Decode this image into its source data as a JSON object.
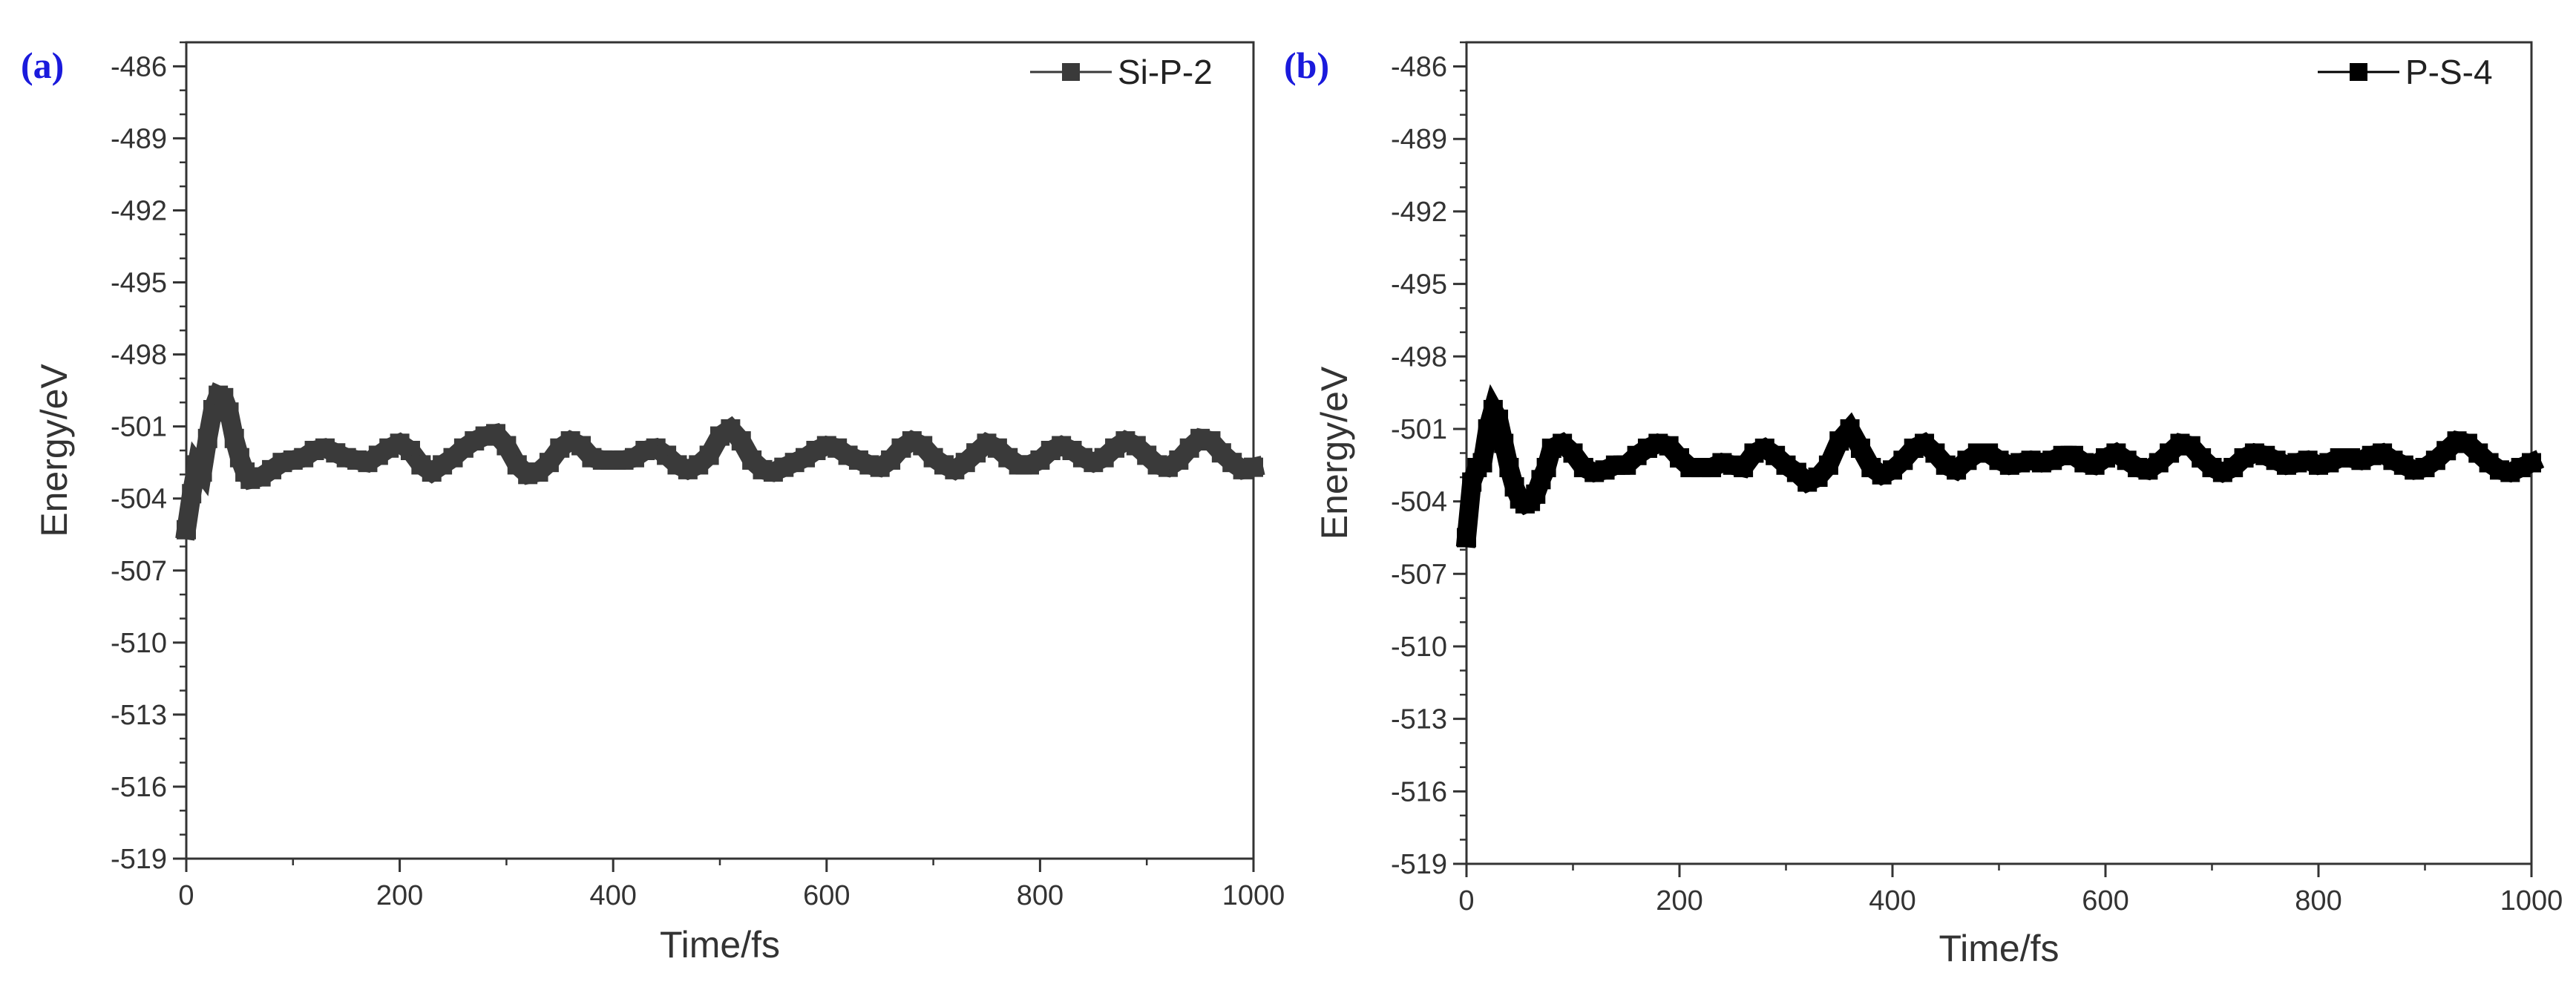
{
  "figure": {
    "panels": [
      "(a)",
      "(b)"
    ]
  },
  "chart_data": [
    {
      "type": "line",
      "panel_label": "(a)",
      "title": "",
      "xlabel": "Time/fs",
      "ylabel": "Energy/eV",
      "xlim": [
        0,
        1000
      ],
      "ylim": [
        -519,
        -485
      ],
      "x_ticks": [
        0,
        200,
        400,
        600,
        800,
        1000
      ],
      "x_tick_labels": [
        "0",
        "200",
        "400",
        "600",
        "800",
        "1000"
      ],
      "y_ticks": [
        -486,
        -489,
        -492,
        -495,
        -498,
        -501,
        -504,
        -507,
        -510,
        -513,
        -516,
        -519
      ],
      "y_tick_labels": [
        "-486",
        "-489",
        "-492",
        "-495",
        "-498",
        "-501",
        "-504",
        "-507",
        "-510",
        "-513",
        "-516",
        "-519"
      ],
      "legend": {
        "position": "top-right",
        "entries": [
          "Si-P-2"
        ]
      },
      "series": [
        {
          "name": "Si-P-2",
          "color": "#3a3a3a",
          "marker": "square",
          "x": [
            0,
            5,
            10,
            15,
            20,
            25,
            30,
            35,
            40,
            45,
            50,
            55,
            60,
            70,
            80,
            90,
            100,
            110,
            120,
            130,
            140,
            150,
            160,
            170,
            180,
            190,
            200,
            210,
            220,
            230,
            240,
            250,
            260,
            270,
            280,
            290,
            300,
            310,
            320,
            330,
            340,
            350,
            360,
            370,
            380,
            390,
            400,
            410,
            420,
            430,
            440,
            450,
            460,
            470,
            480,
            490,
            500,
            510,
            520,
            530,
            540,
            550,
            560,
            570,
            580,
            590,
            600,
            610,
            620,
            630,
            640,
            650,
            660,
            670,
            680,
            690,
            700,
            710,
            720,
            730,
            740,
            750,
            760,
            770,
            780,
            790,
            800,
            810,
            820,
            830,
            840,
            850,
            860,
            870,
            880,
            890,
            900,
            910,
            920,
            930,
            940,
            950,
            960,
            970,
            980,
            990,
            1000
          ],
          "y": [
            -505.3,
            -503.8,
            -502.6,
            -502.9,
            -501.5,
            -500.3,
            -499.7,
            -499.8,
            -500.4,
            -501.5,
            -502.3,
            -502.9,
            -503.2,
            -503.1,
            -502.8,
            -502.5,
            -502.4,
            -502.3,
            -502.0,
            -501.9,
            -502.1,
            -502.3,
            -502.4,
            -502.5,
            -502.2,
            -501.9,
            -501.7,
            -502.0,
            -502.6,
            -502.9,
            -502.6,
            -502.3,
            -501.9,
            -501.6,
            -501.4,
            -501.3,
            -501.8,
            -502.6,
            -503.0,
            -502.9,
            -502.5,
            -501.9,
            -501.6,
            -501.8,
            -502.3,
            -502.4,
            -502.4,
            -502.4,
            -502.3,
            -502.0,
            -501.9,
            -502.2,
            -502.6,
            -502.8,
            -502.6,
            -502.2,
            -501.4,
            -501.1,
            -501.6,
            -502.4,
            -502.8,
            -502.9,
            -502.7,
            -502.5,
            -502.3,
            -502.0,
            -501.8,
            -501.9,
            -502.2,
            -502.4,
            -502.6,
            -502.7,
            -502.4,
            -501.9,
            -501.6,
            -501.8,
            -502.3,
            -502.6,
            -502.8,
            -502.5,
            -502.1,
            -501.7,
            -501.9,
            -502.3,
            -502.6,
            -502.6,
            -502.4,
            -502.0,
            -501.8,
            -502.0,
            -502.3,
            -502.5,
            -502.3,
            -501.9,
            -501.6,
            -501.8,
            -502.2,
            -502.6,
            -502.7,
            -502.4,
            -501.9,
            -501.5,
            -501.6,
            -502.1,
            -502.5,
            -502.8,
            -502.7
          ]
        }
      ]
    },
    {
      "type": "line",
      "panel_label": "(b)",
      "title": "",
      "xlabel": "Time/fs",
      "ylabel": "Energy/eV",
      "xlim": [
        0,
        1000
      ],
      "ylim": [
        -519,
        -485
      ],
      "x_ticks": [
        0,
        200,
        400,
        600,
        800,
        1000
      ],
      "x_tick_labels": [
        "0",
        "200",
        "400",
        "600",
        "800",
        "1000"
      ],
      "y_ticks": [
        -486,
        -489,
        -492,
        -495,
        -498,
        -501,
        -504,
        -507,
        -510,
        -513,
        -516,
        -519
      ],
      "y_tick_labels": [
        "-486",
        "-489",
        "-492",
        "-495",
        "-498",
        "-501",
        "-504",
        "-507",
        "-510",
        "-513",
        "-516",
        "-519"
      ],
      "legend": {
        "position": "top-right",
        "entries": [
          "P-S-4"
        ]
      },
      "series": [
        {
          "name": "P-S-4",
          "color": "#000000",
          "marker": "square",
          "x": [
            0,
            5,
            10,
            15,
            20,
            25,
            30,
            35,
            40,
            45,
            50,
            55,
            60,
            65,
            70,
            75,
            80,
            90,
            100,
            110,
            120,
            130,
            140,
            150,
            160,
            170,
            180,
            190,
            200,
            210,
            220,
            230,
            240,
            250,
            260,
            270,
            280,
            290,
            300,
            310,
            320,
            330,
            340,
            350,
            360,
            370,
            380,
            390,
            400,
            410,
            420,
            430,
            440,
            450,
            460,
            470,
            480,
            490,
            500,
            510,
            520,
            530,
            540,
            550,
            560,
            570,
            580,
            590,
            600,
            610,
            620,
            630,
            640,
            650,
            660,
            670,
            680,
            690,
            700,
            710,
            720,
            730,
            740,
            750,
            760,
            770,
            780,
            790,
            800,
            810,
            820,
            830,
            840,
            850,
            860,
            870,
            880,
            890,
            900,
            910,
            920,
            930,
            940,
            950,
            960,
            970,
            980,
            990,
            1000
          ],
          "y": [
            -505.5,
            -503.2,
            -502.6,
            -502.4,
            -501.0,
            -500.2,
            -500.6,
            -501.6,
            -502.6,
            -503.4,
            -503.9,
            -504.1,
            -504.0,
            -503.7,
            -503.1,
            -502.6,
            -501.8,
            -501.6,
            -502.0,
            -502.6,
            -502.8,
            -502.7,
            -502.5,
            -502.5,
            -502.1,
            -501.8,
            -501.6,
            -501.7,
            -502.2,
            -502.6,
            -502.6,
            -502.6,
            -502.4,
            -502.5,
            -502.6,
            -502.0,
            -501.8,
            -502.1,
            -502.5,
            -502.8,
            -503.2,
            -503.0,
            -502.5,
            -501.5,
            -501.0,
            -501.8,
            -502.6,
            -502.9,
            -502.7,
            -502.3,
            -501.8,
            -501.6,
            -502.0,
            -502.5,
            -502.7,
            -502.3,
            -502.0,
            -502.0,
            -502.3,
            -502.5,
            -502.4,
            -502.3,
            -502.4,
            -502.3,
            -502.1,
            -502.1,
            -502.4,
            -502.5,
            -502.2,
            -502.0,
            -502.3,
            -502.6,
            -502.7,
            -502.4,
            -502.0,
            -501.6,
            -501.7,
            -502.2,
            -502.6,
            -502.8,
            -502.6,
            -502.2,
            -502.0,
            -502.1,
            -502.3,
            -502.5,
            -502.4,
            -502.3,
            -502.5,
            -502.4,
            -502.2,
            -502.2,
            -502.3,
            -502.1,
            -502.0,
            -502.3,
            -502.5,
            -502.7,
            -502.6,
            -502.3,
            -501.9,
            -501.5,
            -501.6,
            -502.0,
            -502.4,
            -502.7,
            -502.8,
            -502.6,
            -502.4
          ]
        }
      ]
    }
  ]
}
